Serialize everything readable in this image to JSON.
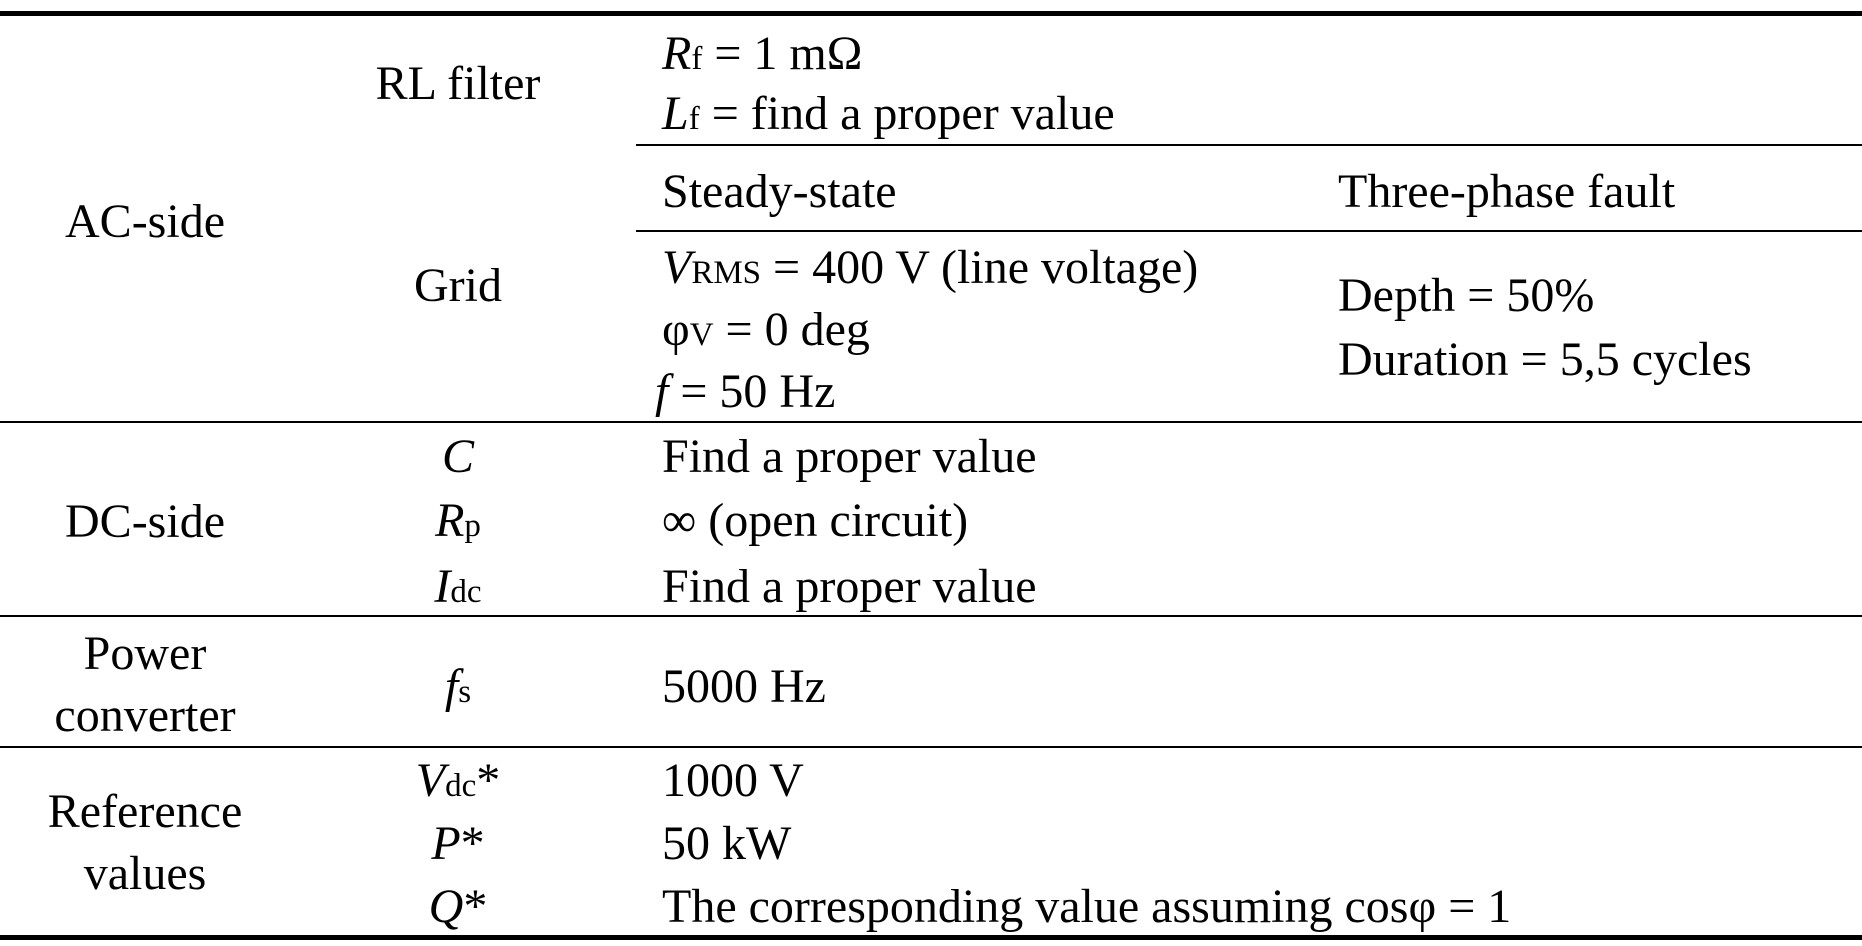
{
  "table": {
    "sections": {
      "ac_side": {
        "label": "AC-side",
        "rl_filter": {
          "label": "RL filter",
          "rf": {
            "sym": "R",
            "sub": "f",
            "text": " = 1 mΩ"
          },
          "lf": {
            "sym": "L",
            "sub": "f",
            "text": " = find a proper value"
          }
        },
        "grid": {
          "label": "Grid",
          "steady_header": "Steady-state",
          "fault_header": "Three-phase fault",
          "vrms": {
            "sym": "V",
            "sub": "RMS",
            "text": " = 400 V (line voltage)"
          },
          "phi": {
            "sym": "φ",
            "sub": "V",
            "text": " = 0 deg"
          },
          "freq": {
            "sym": "f",
            "text": " = 50 Hz"
          },
          "depth": "Depth = 50%",
          "duration": "Duration = 5,5 cycles"
        }
      },
      "dc_side": {
        "label": "DC-side",
        "rows": [
          {
            "sym": "C",
            "sub": "",
            "value": "Find a proper value"
          },
          {
            "sym": "R",
            "sub": "p",
            "value": "∞ (open circuit)"
          },
          {
            "sym": "I",
            "sub": "dc",
            "value": "Find a proper value"
          }
        ]
      },
      "power_converter": {
        "label_line1": "Power",
        "label_line2": "converter",
        "sym": "f",
        "sub": "s",
        "value": "5000 Hz"
      },
      "reference_values": {
        "label_line1": "Reference",
        "label_line2": "values",
        "rows": [
          {
            "sym": "V",
            "sub": "dc",
            "star": "*",
            "value": "1000 V"
          },
          {
            "sym": "P",
            "sub": "",
            "star": "*",
            "value": "50 kW"
          },
          {
            "sym": "Q",
            "sub": "",
            "star": "*",
            "value": "The corresponding value assuming cosφ = 1"
          }
        ]
      }
    }
  }
}
